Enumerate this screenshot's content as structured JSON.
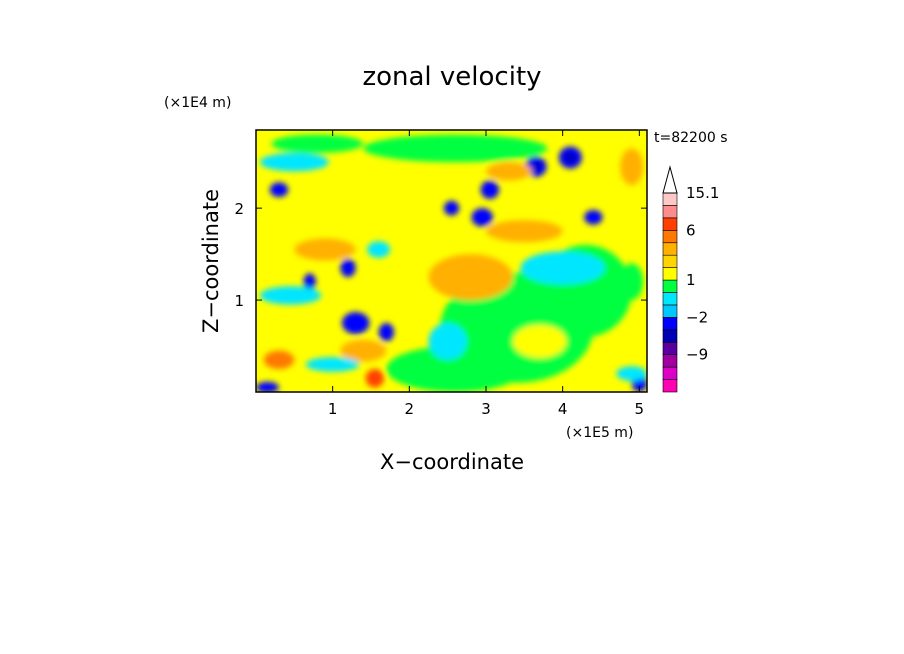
{
  "chart_data": {
    "type": "heatmap",
    "title": "zonal velocity",
    "xlabel": "X−coordinate",
    "ylabel": "Z−coordinate",
    "x_unit": "(×1E5 m)",
    "y_unit": "(×1E4 m)",
    "time_label": "t=82200 s",
    "xlim": [
      0,
      5.1
    ],
    "ylim": [
      0,
      2.85
    ],
    "x_ticks": [
      "1",
      "2",
      "3",
      "4",
      "5"
    ],
    "y_ticks": [
      "1",
      "2"
    ],
    "colorbar": {
      "tick_labels": [
        "15.1",
        "6",
        "1",
        "−2",
        "−9"
      ],
      "levels": [
        -15,
        -12,
        -9,
        -6,
        -4,
        -2,
        -1,
        0,
        1,
        2,
        3,
        4,
        6,
        9,
        12,
        15.1
      ],
      "colors": [
        "#ff00b4",
        "#dc00c8",
        "#a000a0",
        "#5a00a0",
        "#0000b4",
        "#0000ff",
        "#00c8ff",
        "#00e6ff",
        "#00ff40",
        "#ffff00",
        "#ffd400",
        "#ffb000",
        "#ff7800",
        "#ff4000",
        "#ff8c8c",
        "#ffc8c8"
      ],
      "extend_top_color": "#ffffff"
    },
    "field": {
      "background": "#ffff00",
      "regions": [
        {
          "kind": "green",
          "color": "#00ff40",
          "x": 3.4,
          "z": 0.7,
          "rx": 1.0,
          "rz": 0.6
        },
        {
          "kind": "green",
          "color": "#00ff40",
          "x": 2.6,
          "z": 0.25,
          "rx": 0.9,
          "rz": 0.25
        },
        {
          "kind": "green",
          "color": "#00ff40",
          "x": 4.3,
          "z": 1.1,
          "rx": 0.6,
          "rz": 0.5
        },
        {
          "kind": "yellow",
          "color": "#ffff00",
          "x": 3.7,
          "z": 0.55,
          "rx": 0.35,
          "rz": 0.18
        },
        {
          "kind": "orange",
          "color": "#ffb000",
          "x": 2.8,
          "z": 1.25,
          "rx": 0.55,
          "rz": 0.25
        },
        {
          "kind": "cyan",
          "color": "#00e6ff",
          "x": 2.5,
          "z": 0.55,
          "rx": 0.25,
          "rz": 0.2
        },
        {
          "kind": "cyan",
          "color": "#00e6ff",
          "x": 4.0,
          "z": 1.35,
          "rx": 0.55,
          "rz": 0.18
        },
        {
          "kind": "green",
          "color": "#00ff40",
          "x": 2.6,
          "z": 2.65,
          "rx": 1.2,
          "rz": 0.15
        },
        {
          "kind": "blue",
          "color": "#0000ff",
          "x": 4.1,
          "z": 2.55,
          "rx": 0.15,
          "rz": 0.12
        },
        {
          "kind": "navy",
          "color": "#0000b4",
          "x": 4.1,
          "z": 2.55,
          "rx": 0.07,
          "rz": 0.06
        },
        {
          "kind": "blue",
          "color": "#0000ff",
          "x": 3.65,
          "z": 2.45,
          "rx": 0.14,
          "rz": 0.11
        },
        {
          "kind": "navy",
          "color": "#0000b4",
          "x": 3.65,
          "z": 2.45,
          "rx": 0.06,
          "rz": 0.05
        },
        {
          "kind": "blue",
          "color": "#0000ff",
          "x": 3.05,
          "z": 2.2,
          "rx": 0.12,
          "rz": 0.1
        },
        {
          "kind": "blue",
          "color": "#0000ff",
          "x": 2.95,
          "z": 1.9,
          "rx": 0.14,
          "rz": 0.1
        },
        {
          "kind": "blue",
          "color": "#0000ff",
          "x": 4.4,
          "z": 1.9,
          "rx": 0.12,
          "rz": 0.08
        },
        {
          "kind": "blue",
          "color": "#0000ff",
          "x": 2.55,
          "z": 2.0,
          "rx": 0.1,
          "rz": 0.08
        },
        {
          "kind": "orange",
          "color": "#ffb000",
          "x": 3.3,
          "z": 2.4,
          "rx": 0.3,
          "rz": 0.1
        },
        {
          "kind": "orange",
          "color": "#ffb000",
          "x": 4.9,
          "z": 2.45,
          "rx": 0.15,
          "rz": 0.2
        },
        {
          "kind": "orange",
          "color": "#ffb000",
          "x": 3.5,
          "z": 1.75,
          "rx": 0.5,
          "rz": 0.12
        },
        {
          "kind": "cyan",
          "color": "#00e6ff",
          "x": 0.5,
          "z": 2.5,
          "rx": 0.45,
          "rz": 0.1
        },
        {
          "kind": "blue",
          "color": "#0000ff",
          "x": 0.3,
          "z": 2.2,
          "rx": 0.12,
          "rz": 0.08
        },
        {
          "kind": "blue",
          "color": "#0000ff",
          "x": 0.7,
          "z": 1.2,
          "rx": 0.08,
          "rz": 0.09
        },
        {
          "kind": "cyan",
          "color": "#00e6ff",
          "x": 0.45,
          "z": 1.05,
          "rx": 0.4,
          "rz": 0.1
        },
        {
          "kind": "orange",
          "color": "#ff7800",
          "x": 0.3,
          "z": 0.35,
          "rx": 0.2,
          "rz": 0.1
        },
        {
          "kind": "orange",
          "color": "#ffb000",
          "x": 0.9,
          "z": 1.55,
          "rx": 0.4,
          "rz": 0.12
        },
        {
          "kind": "blue",
          "color": "#0000ff",
          "x": 1.3,
          "z": 0.75,
          "rx": 0.18,
          "rz": 0.12
        },
        {
          "kind": "blue",
          "color": "#0000ff",
          "x": 1.7,
          "z": 0.65,
          "rx": 0.1,
          "rz": 0.1
        },
        {
          "kind": "blue",
          "color": "#0000ff",
          "x": 1.2,
          "z": 1.35,
          "rx": 0.1,
          "rz": 0.1
        },
        {
          "kind": "cyan",
          "color": "#00e6ff",
          "x": 1.6,
          "z": 1.55,
          "rx": 0.15,
          "rz": 0.09
        },
        {
          "kind": "blue",
          "color": "#0000ff",
          "x": 0.15,
          "z": 0.05,
          "rx": 0.15,
          "rz": 0.06
        },
        {
          "kind": "red",
          "color": "#ff4000",
          "x": 1.55,
          "z": 0.15,
          "rx": 0.12,
          "rz": 0.1
        },
        {
          "kind": "orange",
          "color": "#ffb000",
          "x": 1.4,
          "z": 0.45,
          "rx": 0.3,
          "rz": 0.12
        },
        {
          "kind": "cyan",
          "color": "#00e6ff",
          "x": 1.0,
          "z": 0.3,
          "rx": 0.35,
          "rz": 0.08
        },
        {
          "kind": "green",
          "color": "#00ff40",
          "x": 0.8,
          "z": 2.7,
          "rx": 0.6,
          "rz": 0.1
        },
        {
          "kind": "green",
          "color": "#00ff40",
          "x": 4.9,
          "z": 1.2,
          "rx": 0.15,
          "rz": 0.2
        },
        {
          "kind": "blue",
          "color": "#0000ff",
          "x": 5.0,
          "z": 0.1,
          "rx": 0.1,
          "rz": 0.1
        },
        {
          "kind": "cyan",
          "color": "#00e6ff",
          "x": 4.9,
          "z": 0.2,
          "rx": 0.2,
          "rz": 0.08
        }
      ]
    }
  }
}
